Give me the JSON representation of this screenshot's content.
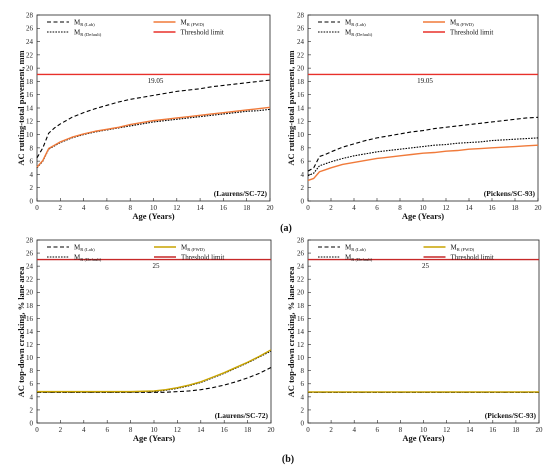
{
  "figure": {
    "panel_labels": [
      "(a)",
      "(b)"
    ]
  },
  "chart_data": [
    {
      "id": "a1",
      "type": "line",
      "site": "(Laurens/SC-72)",
      "ylabel": "AC rutting-total pavement, mm",
      "xlabel": "Age (Years)",
      "xlim": [
        0,
        20
      ],
      "ylim": [
        0,
        28
      ],
      "xticks": [
        0,
        2,
        4,
        6,
        8,
        10,
        12,
        14,
        16,
        18,
        20
      ],
      "yticks": [
        0,
        2,
        4,
        6,
        8,
        10,
        12,
        14,
        16,
        18,
        20,
        22,
        24,
        26,
        28
      ],
      "threshold": {
        "value": 19.05,
        "label": "19.05"
      },
      "legend": [
        {
          "key": "lab",
          "label_main": "M",
          "label_sub": "R (Lab)"
        },
        {
          "key": "fwd",
          "label_main": "M",
          "label_sub": "R (FWD)"
        },
        {
          "key": "default",
          "label_main": "M",
          "label_sub": "R (Default)"
        },
        {
          "key": "threshold",
          "label_main": "Threshold limit",
          "label_sub": ""
        }
      ],
      "series": [
        {
          "key": "lab",
          "x": [
            0,
            0.5,
            1,
            1.5,
            2,
            3,
            4,
            5,
            6,
            7,
            8,
            9,
            10,
            11,
            12,
            13,
            14,
            15,
            16,
            17,
            18,
            19,
            20
          ],
          "values": [
            6.5,
            8.0,
            10.2,
            11.0,
            11.6,
            12.6,
            13.3,
            13.9,
            14.4,
            14.9,
            15.3,
            15.6,
            15.9,
            16.2,
            16.5,
            16.7,
            16.9,
            17.2,
            17.4,
            17.6,
            17.8,
            18.0,
            18.2
          ]
        },
        {
          "key": "default",
          "x": [
            0,
            0.5,
            1,
            1.5,
            2,
            3,
            4,
            5,
            6,
            7,
            8,
            9,
            10,
            11,
            12,
            13,
            14,
            15,
            16,
            17,
            18,
            19,
            20
          ],
          "values": [
            5.0,
            6.0,
            7.8,
            8.3,
            8.8,
            9.5,
            10.0,
            10.4,
            10.7,
            11.0,
            11.3,
            11.6,
            11.9,
            12.1,
            12.3,
            12.5,
            12.7,
            12.9,
            13.1,
            13.3,
            13.5,
            13.6,
            13.8
          ]
        },
        {
          "key": "fwd",
          "x": [
            0,
            0.5,
            1,
            1.5,
            2,
            3,
            4,
            5,
            6,
            7,
            8,
            9,
            10,
            11,
            12,
            13,
            14,
            15,
            16,
            17,
            18,
            19,
            20
          ],
          "values": [
            5.1,
            6.1,
            7.9,
            8.4,
            8.9,
            9.6,
            10.1,
            10.5,
            10.8,
            11.1,
            11.5,
            11.8,
            12.1,
            12.3,
            12.5,
            12.7,
            12.9,
            13.1,
            13.3,
            13.5,
            13.7,
            13.9,
            14.1
          ]
        }
      ]
    },
    {
      "id": "a2",
      "type": "line",
      "site": "(Pickens/SC-93)",
      "ylabel": "AC rutting-total pavement, mm",
      "xlabel": "Age (Years)",
      "xlim": [
        0,
        20
      ],
      "ylim": [
        0,
        28
      ],
      "xticks": [
        0,
        2,
        4,
        6,
        8,
        10,
        12,
        14,
        16,
        18,
        20
      ],
      "yticks": [
        0,
        2,
        4,
        6,
        8,
        10,
        12,
        14,
        16,
        18,
        20,
        22,
        24,
        26,
        28
      ],
      "threshold": {
        "value": 19.05,
        "label": "19.05"
      },
      "legend": [
        {
          "key": "lab",
          "label_main": "M",
          "label_sub": "R (Lab)"
        },
        {
          "key": "fwd",
          "label_main": "M",
          "label_sub": "R (FWD)"
        },
        {
          "key": "default",
          "label_main": "M",
          "label_sub": "R (Default)"
        },
        {
          "key": "threshold",
          "label_main": "Threshold limit",
          "label_sub": ""
        }
      ],
      "series": [
        {
          "key": "lab",
          "x": [
            0,
            0.5,
            1,
            1.5,
            2,
            3,
            4,
            5,
            6,
            7,
            8,
            9,
            10,
            11,
            12,
            13,
            14,
            15,
            16,
            17,
            18,
            19,
            20
          ],
          "values": [
            4.5,
            5.0,
            6.7,
            7.0,
            7.4,
            8.1,
            8.6,
            9.1,
            9.5,
            9.8,
            10.1,
            10.4,
            10.6,
            10.9,
            11.1,
            11.3,
            11.5,
            11.7,
            11.9,
            12.1,
            12.3,
            12.5,
            12.6
          ]
        },
        {
          "key": "default",
          "x": [
            0,
            0.5,
            1,
            1.5,
            2,
            3,
            4,
            5,
            6,
            7,
            8,
            9,
            10,
            11,
            12,
            13,
            14,
            15,
            16,
            17,
            18,
            19,
            20
          ],
          "values": [
            3.8,
            4.2,
            5.3,
            5.6,
            5.9,
            6.4,
            6.8,
            7.1,
            7.4,
            7.6,
            7.8,
            8.0,
            8.2,
            8.4,
            8.5,
            8.7,
            8.8,
            8.9,
            9.1,
            9.2,
            9.3,
            9.4,
            9.5
          ]
        },
        {
          "key": "fwd",
          "x": [
            0,
            0.5,
            1,
            1.5,
            2,
            3,
            4,
            5,
            6,
            7,
            8,
            9,
            10,
            11,
            12,
            13,
            14,
            15,
            16,
            17,
            18,
            19,
            20
          ],
          "values": [
            3.1,
            3.4,
            4.4,
            4.7,
            5.0,
            5.5,
            5.8,
            6.1,
            6.4,
            6.6,
            6.8,
            7.0,
            7.2,
            7.3,
            7.5,
            7.6,
            7.8,
            7.9,
            8.0,
            8.1,
            8.2,
            8.3,
            8.4
          ]
        }
      ]
    },
    {
      "id": "b1",
      "type": "line",
      "site": "(Laurens/SC-72)",
      "ylabel": "AC top-down cracking, % lane area",
      "xlabel": "Age (Years)",
      "xlim": [
        0,
        20
      ],
      "ylim": [
        0,
        28
      ],
      "xticks": [
        0,
        2,
        4,
        6,
        8,
        10,
        12,
        14,
        16,
        18,
        20
      ],
      "yticks": [
        0,
        2,
        4,
        6,
        8,
        10,
        12,
        14,
        16,
        18,
        20,
        22,
        24,
        26,
        28
      ],
      "threshold": {
        "value": 25,
        "label": "25"
      },
      "legend": [
        {
          "key": "lab",
          "label_main": "M",
          "label_sub": "R (Lab)"
        },
        {
          "key": "fwd",
          "label_main": "M",
          "label_sub": "R (FWD)"
        },
        {
          "key": "default",
          "label_main": "M",
          "label_sub": "R (Default)"
        },
        {
          "key": "threshold",
          "label_main": "Threshold limit",
          "label_sub": ""
        }
      ],
      "series": [
        {
          "key": "lab",
          "x": [
            0,
            2,
            4,
            6,
            8,
            10,
            11,
            12,
            13,
            14,
            15,
            16,
            17,
            18,
            19,
            20
          ],
          "values": [
            4.7,
            4.7,
            4.7,
            4.7,
            4.7,
            4.7,
            4.7,
            4.8,
            4.9,
            5.1,
            5.4,
            5.8,
            6.3,
            6.9,
            7.6,
            8.5
          ]
        },
        {
          "key": "default",
          "x": [
            0,
            2,
            4,
            6,
            8,
            10,
            11,
            12,
            13,
            14,
            15,
            16,
            17,
            18,
            19,
            20
          ],
          "values": [
            4.7,
            4.7,
            4.7,
            4.7,
            4.7,
            4.8,
            5.0,
            5.3,
            5.7,
            6.2,
            6.9,
            7.6,
            8.4,
            9.2,
            10.1,
            11.0
          ]
        },
        {
          "key": "fwd",
          "x": [
            0,
            2,
            4,
            6,
            8,
            10,
            11,
            12,
            13,
            14,
            15,
            16,
            17,
            18,
            19,
            20
          ],
          "values": [
            4.8,
            4.8,
            4.8,
            4.8,
            4.8,
            4.9,
            5.1,
            5.4,
            5.8,
            6.3,
            7.0,
            7.7,
            8.5,
            9.3,
            10.2,
            11.2
          ]
        }
      ]
    },
    {
      "id": "b2",
      "type": "line",
      "site": "(Pickens/SC-93)",
      "ylabel": "AC top-down cracking, % lane area",
      "xlabel": "Age (Years)",
      "xlim": [
        0,
        20
      ],
      "ylim": [
        0,
        28
      ],
      "xticks": [
        0,
        2,
        4,
        6,
        8,
        10,
        12,
        14,
        16,
        18,
        20
      ],
      "yticks": [
        0,
        2,
        4,
        6,
        8,
        10,
        12,
        14,
        16,
        18,
        20,
        22,
        24,
        26,
        28
      ],
      "threshold": {
        "value": 25,
        "label": "25"
      },
      "legend": [
        {
          "key": "lab",
          "label_main": "M",
          "label_sub": "R (Lab)"
        },
        {
          "key": "fwd",
          "label_main": "M",
          "label_sub": "R (FWD)"
        },
        {
          "key": "default",
          "label_main": "M",
          "label_sub": "R (Default)"
        },
        {
          "key": "threshold",
          "label_main": "Threshold limit",
          "label_sub": ""
        }
      ],
      "series": [
        {
          "key": "lab",
          "x": [
            0,
            20
          ],
          "values": [
            4.7,
            4.7
          ]
        },
        {
          "key": "default",
          "x": [
            0,
            20
          ],
          "values": [
            4.7,
            4.7
          ]
        },
        {
          "key": "fwd",
          "x": [
            0,
            20
          ],
          "values": [
            4.75,
            4.75
          ]
        }
      ]
    }
  ],
  "styles": {
    "a": {
      "lab": {
        "color": "#000000",
        "dash": "4,2.5",
        "width": 1.1
      },
      "default": {
        "color": "#000000",
        "dash": "1.6,1.2",
        "width": 1.1
      },
      "fwd": {
        "color": "#f07a3a",
        "dash": "",
        "width": 1.4
      },
      "threshold": {
        "color": "#e8302a",
        "dash": "",
        "width": 1.4
      }
    },
    "b": {
      "lab": {
        "color": "#000000",
        "dash": "4,2.5",
        "width": 1.1
      },
      "default": {
        "color": "#000000",
        "dash": "1.6,1.2",
        "width": 1.1
      },
      "fwd": {
        "color": "#c9a400",
        "dash": "",
        "width": 1.4
      },
      "threshold": {
        "color": "#c62828",
        "dash": "",
        "width": 1.4
      }
    }
  }
}
